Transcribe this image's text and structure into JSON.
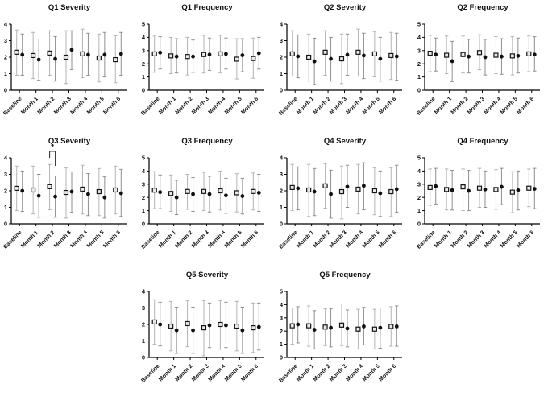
{
  "figure": {
    "background": "#ffffff",
    "panel_count": 10
  },
  "style": {
    "axis_color": "#000000",
    "text_color": "#111111",
    "square_series": {
      "marker": "open-square",
      "marker_fill": "#e9e9e9",
      "marker_edge": "#151515",
      "error_bar_color": "#b3b3b3"
    },
    "circle_series": {
      "marker": "filled-circle",
      "marker_fill": "#111111",
      "error_bar_color": "#8f8f8f"
    }
  },
  "chart_data": [
    {
      "type": "scatter",
      "title": "Q1 Severity",
      "categories": [
        "Baseline",
        "Month 1",
        "Month 2",
        "Month 3",
        "Month 4",
        "Month 5",
        "Month 6"
      ],
      "ylim": [
        0,
        4
      ],
      "yticks": [
        0,
        1,
        2,
        3,
        4
      ],
      "grid": false,
      "legend": "none",
      "series": [
        {
          "name": "open-square",
          "values": [
            2.3,
            2.1,
            2.25,
            2.0,
            2.2,
            1.95,
            1.85
          ],
          "err_lo": [
            0.9,
            0.7,
            0.9,
            0.4,
            0.75,
            0.5,
            0.45
          ],
          "err_hi": [
            3.65,
            3.5,
            3.6,
            3.6,
            3.7,
            3.4,
            3.3
          ]
        },
        {
          "name": "filled-circle",
          "values": [
            2.15,
            1.85,
            1.9,
            2.45,
            2.15,
            2.15,
            2.2
          ],
          "err_lo": [
            0.9,
            0.6,
            0.55,
            1.25,
            0.9,
            0.8,
            0.9
          ],
          "err_hi": [
            3.4,
            3.1,
            3.25,
            3.6,
            3.45,
            3.5,
            3.5
          ]
        }
      ]
    },
    {
      "type": "scatter",
      "title": "Q1 Frequency",
      "categories": [
        "Baseline",
        "Month 1",
        "Month 2",
        "Month 3",
        "Month 4",
        "Month 5",
        "Month 6"
      ],
      "ylim": [
        0,
        5
      ],
      "yticks": [
        0,
        1,
        2,
        3,
        4,
        5
      ],
      "grid": false,
      "legend": "none",
      "series": [
        {
          "name": "open-square",
          "values": [
            2.75,
            2.6,
            2.55,
            2.7,
            2.75,
            2.35,
            2.4
          ],
          "err_lo": [
            1.35,
            1.25,
            1.15,
            1.3,
            1.3,
            0.85,
            0.9
          ],
          "err_hi": [
            4.1,
            4.0,
            4.0,
            4.15,
            4.15,
            3.9,
            3.95
          ]
        },
        {
          "name": "filled-circle",
          "values": [
            2.85,
            2.55,
            2.55,
            2.7,
            2.75,
            2.65,
            2.8
          ],
          "err_lo": [
            1.6,
            1.3,
            1.35,
            1.5,
            1.6,
            1.4,
            1.6
          ],
          "err_hi": [
            4.05,
            3.9,
            3.8,
            3.95,
            3.95,
            3.9,
            4.0
          ]
        }
      ]
    },
    {
      "type": "scatter",
      "title": "Q2 Severity",
      "categories": [
        "Baseline",
        "Month 1",
        "Month 2",
        "Month 3",
        "Month 4",
        "Month 5",
        "Month 6"
      ],
      "ylim": [
        0,
        4
      ],
      "yticks": [
        0,
        1,
        2,
        3,
        4
      ],
      "grid": false,
      "legend": "none",
      "series": [
        {
          "name": "open-square",
          "values": [
            2.2,
            2.0,
            2.3,
            1.9,
            2.3,
            2.2,
            2.1
          ],
          "err_lo": [
            0.85,
            0.55,
            0.9,
            0.4,
            0.85,
            0.8,
            0.65
          ],
          "err_hi": [
            3.6,
            3.4,
            3.6,
            3.4,
            3.7,
            3.55,
            3.5
          ]
        },
        {
          "name": "filled-circle",
          "values": [
            2.05,
            1.75,
            1.9,
            2.15,
            2.1,
            1.9,
            2.05
          ],
          "err_lo": [
            0.75,
            0.35,
            0.55,
            0.9,
            0.7,
            0.55,
            0.6
          ],
          "err_hi": [
            3.35,
            3.15,
            3.2,
            3.4,
            3.45,
            3.2,
            3.45
          ]
        }
      ]
    },
    {
      "type": "scatter",
      "title": "Q2 Frequency",
      "categories": [
        "Baseline",
        "Month 1",
        "Month 2",
        "Month 3",
        "Month 4",
        "Month 5",
        "Month 6"
      ],
      "ylim": [
        0,
        5
      ],
      "yticks": [
        0,
        1,
        2,
        3,
        4,
        5
      ],
      "grid": false,
      "legend": "none",
      "series": [
        {
          "name": "open-square",
          "values": [
            2.8,
            2.65,
            2.7,
            2.85,
            2.65,
            2.6,
            2.75
          ],
          "err_lo": [
            1.4,
            1.25,
            1.3,
            1.55,
            1.25,
            1.15,
            1.4
          ],
          "err_hi": [
            4.15,
            4.1,
            4.1,
            4.2,
            4.05,
            4.05,
            4.1
          ]
        },
        {
          "name": "filled-circle",
          "values": [
            2.7,
            2.2,
            2.55,
            2.5,
            2.55,
            2.6,
            2.7
          ],
          "err_lo": [
            1.45,
            0.65,
            1.3,
            1.15,
            1.2,
            1.3,
            1.45
          ],
          "err_hi": [
            3.95,
            3.7,
            3.85,
            3.85,
            3.9,
            3.95,
            4.05
          ]
        }
      ]
    },
    {
      "type": "scatter",
      "title": "Q3 Severity",
      "categories": [
        "Baseline",
        "Month 1",
        "Month 2",
        "Month 3",
        "Month 4",
        "Month 5",
        "Month 6"
      ],
      "ylim": [
        0,
        4
      ],
      "yticks": [
        0,
        1,
        2,
        3,
        4
      ],
      "grid": false,
      "legend": "none",
      "annotation": {
        "label": "*",
        "category_index": 2,
        "type": "bracket"
      },
      "series": [
        {
          "name": "open-square",
          "values": [
            2.15,
            2.05,
            2.25,
            1.9,
            2.1,
            1.95,
            2.05
          ],
          "err_lo": [
            0.8,
            0.6,
            0.85,
            0.35,
            0.6,
            0.5,
            0.6
          ],
          "err_hi": [
            3.5,
            3.5,
            3.6,
            3.4,
            3.55,
            3.35,
            3.5
          ]
        },
        {
          "name": "filled-circle",
          "values": [
            2.0,
            1.7,
            1.65,
            1.95,
            1.8,
            1.6,
            1.85
          ],
          "err_lo": [
            0.75,
            0.4,
            0.4,
            0.7,
            0.5,
            0.35,
            0.45
          ],
          "err_hi": [
            3.2,
            3.0,
            2.9,
            3.15,
            3.05,
            2.85,
            3.3
          ]
        }
      ]
    },
    {
      "type": "scatter",
      "title": "Q3 Frequency",
      "categories": [
        "Baseline",
        "Month 1",
        "Month 2",
        "Month 3",
        "Month 4",
        "Month 5",
        "Month 6"
      ],
      "ylim": [
        0,
        5
      ],
      "yticks": [
        0,
        1,
        2,
        3,
        4,
        5
      ],
      "grid": false,
      "legend": "none",
      "series": [
        {
          "name": "open-square",
          "values": [
            2.55,
            2.3,
            2.45,
            2.45,
            2.5,
            2.35,
            2.45
          ],
          "err_lo": [
            1.15,
            0.95,
            1.1,
            1.0,
            1.05,
            0.9,
            1.05
          ],
          "err_hi": [
            3.95,
            3.7,
            3.75,
            3.9,
            4.0,
            3.8,
            3.85
          ]
        },
        {
          "name": "filled-circle",
          "values": [
            2.4,
            2.0,
            2.25,
            2.25,
            2.15,
            2.1,
            2.35
          ],
          "err_lo": [
            1.15,
            0.7,
            0.95,
            0.9,
            0.8,
            0.75,
            0.95
          ],
          "err_hi": [
            3.7,
            3.3,
            3.5,
            3.6,
            3.45,
            3.45,
            3.75
          ]
        }
      ]
    },
    {
      "type": "scatter",
      "title": "Q4 Severity",
      "categories": [
        "Baseline",
        "Month 1",
        "Month 2",
        "Month 3",
        "Month 4",
        "Month 5",
        "Month 6"
      ],
      "ylim": [
        0,
        4
      ],
      "yticks": [
        0,
        1,
        2,
        3,
        4
      ],
      "grid": false,
      "legend": "none",
      "series": [
        {
          "name": "open-square",
          "values": [
            2.2,
            2.05,
            2.3,
            1.95,
            2.1,
            2.0,
            1.95
          ],
          "err_lo": [
            0.8,
            0.45,
            0.95,
            0.3,
            0.6,
            0.55,
            0.45
          ],
          "err_hi": [
            3.6,
            3.6,
            3.65,
            3.5,
            3.6,
            3.4,
            3.4
          ]
        },
        {
          "name": "filled-circle",
          "values": [
            2.15,
            1.95,
            1.8,
            2.25,
            2.3,
            1.85,
            2.1
          ],
          "err_lo": [
            0.85,
            0.5,
            0.35,
            1.0,
            0.85,
            0.45,
            0.7
          ],
          "err_hi": [
            3.45,
            3.35,
            3.25,
            3.55,
            3.7,
            3.2,
            3.55
          ]
        }
      ]
    },
    {
      "type": "scatter",
      "title": "Q4 Frequency",
      "categories": [
        "Baseline",
        "Month 1",
        "Month 2",
        "Month 3",
        "Month 4",
        "Month 5",
        "Month 6"
      ],
      "ylim": [
        0,
        5
      ],
      "yticks": [
        0,
        1,
        2,
        3,
        4,
        5
      ],
      "grid": false,
      "legend": "none",
      "series": [
        {
          "name": "open-square",
          "values": [
            2.75,
            2.6,
            2.8,
            2.7,
            2.6,
            2.4,
            2.7
          ],
          "err_lo": [
            1.4,
            1.05,
            1.0,
            1.25,
            1.1,
            0.85,
            1.3
          ],
          "err_hi": [
            4.15,
            4.15,
            4.15,
            4.2,
            4.1,
            3.95,
            4.15
          ]
        },
        {
          "name": "filled-circle",
          "values": [
            2.85,
            2.55,
            2.5,
            2.6,
            2.8,
            2.55,
            2.65
          ],
          "err_lo": [
            1.5,
            1.05,
            1.0,
            1.25,
            1.45,
            1.05,
            1.15
          ],
          "err_hi": [
            4.2,
            4.05,
            4.05,
            4.0,
            4.2,
            4.0,
            4.2
          ]
        }
      ]
    },
    {
      "type": "scatter",
      "title": "Q5 Severity",
      "categories": [
        "Baseline",
        "Month 1",
        "Month 2",
        "Month 3",
        "Month 4",
        "Month 5",
        "Month 6"
      ],
      "ylim": [
        0,
        4
      ],
      "yticks": [
        0,
        1,
        2,
        3,
        4
      ],
      "grid": false,
      "legend": "none",
      "series": [
        {
          "name": "open-square",
          "values": [
            2.15,
            1.9,
            2.05,
            1.8,
            2.0,
            1.9,
            1.8
          ],
          "err_lo": [
            0.8,
            0.4,
            0.65,
            0.1,
            0.5,
            0.4,
            0.3
          ],
          "err_hi": [
            3.5,
            3.4,
            3.45,
            3.45,
            3.45,
            3.4,
            3.3
          ]
        },
        {
          "name": "filled-circle",
          "values": [
            2.0,
            1.65,
            1.65,
            1.95,
            1.95,
            1.65,
            1.85
          ],
          "err_lo": [
            0.7,
            0.25,
            0.25,
            0.6,
            0.6,
            0.25,
            0.45
          ],
          "err_hi": [
            3.35,
            3.05,
            3.05,
            3.3,
            3.35,
            3.05,
            3.3
          ]
        }
      ]
    },
    {
      "type": "scatter",
      "title": "Q5 Frequency",
      "categories": [
        "Baseline",
        "Month 1",
        "Month 2",
        "Month 3",
        "Month 4",
        "Month 5",
        "Month 6"
      ],
      "ylim": [
        0,
        5
      ],
      "yticks": [
        0,
        1,
        2,
        3,
        4,
        5
      ],
      "grid": false,
      "legend": "none",
      "series": [
        {
          "name": "open-square",
          "values": [
            2.4,
            2.4,
            2.3,
            2.45,
            2.15,
            2.15,
            2.35
          ],
          "err_lo": [
            1.0,
            0.85,
            0.9,
            0.9,
            0.65,
            0.65,
            0.85
          ],
          "err_hi": [
            3.75,
            3.9,
            3.7,
            4.05,
            3.65,
            3.65,
            3.85
          ]
        },
        {
          "name": "filled-circle",
          "values": [
            2.5,
            2.1,
            2.25,
            2.2,
            2.35,
            2.25,
            2.35
          ],
          "err_lo": [
            1.1,
            0.65,
            0.8,
            0.8,
            0.95,
            0.7,
            0.85
          ],
          "err_hi": [
            3.85,
            3.55,
            3.7,
            3.6,
            3.8,
            3.75,
            3.9
          ]
        }
      ]
    }
  ]
}
